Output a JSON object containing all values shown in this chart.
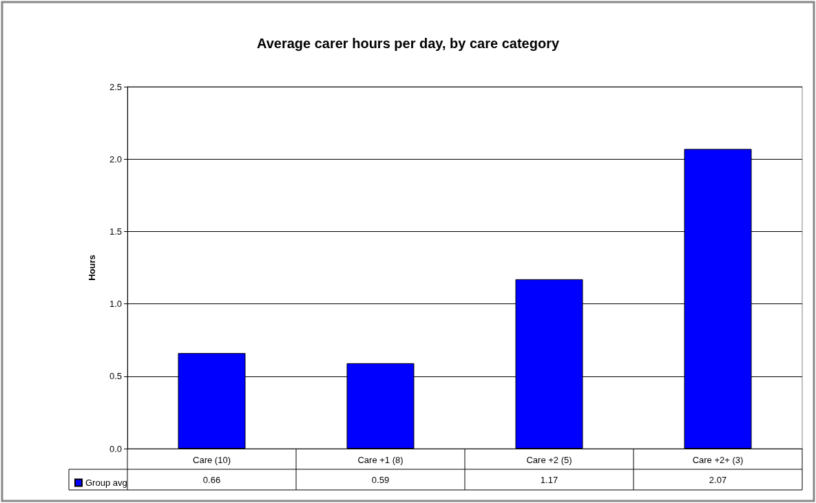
{
  "chart_data": {
    "type": "bar",
    "title": "Average carer hours per day, by care category",
    "ylabel": "Hours",
    "categories": [
      "Care (10)",
      "Care +1 (8)",
      "Care +2 (5)",
      "Care +2+ (3)"
    ],
    "series": [
      {
        "name": "Group avg",
        "color": "#0000ff",
        "values": [
          0.66,
          0.59,
          1.17,
          2.07
        ]
      }
    ],
    "ylim": [
      0,
      2.5
    ],
    "yticks": [
      {
        "value": 0,
        "label": "0.0"
      },
      {
        "value": 0.5,
        "label": "0.5"
      },
      {
        "value": 1,
        "label": "1.0"
      },
      {
        "value": 1.5,
        "label": "1.5"
      },
      {
        "value": 2,
        "label": "2.0"
      },
      {
        "value": 2.5,
        "label": "2.5"
      }
    ],
    "grid": "y",
    "legend": "bottom",
    "data_labels": true
  }
}
